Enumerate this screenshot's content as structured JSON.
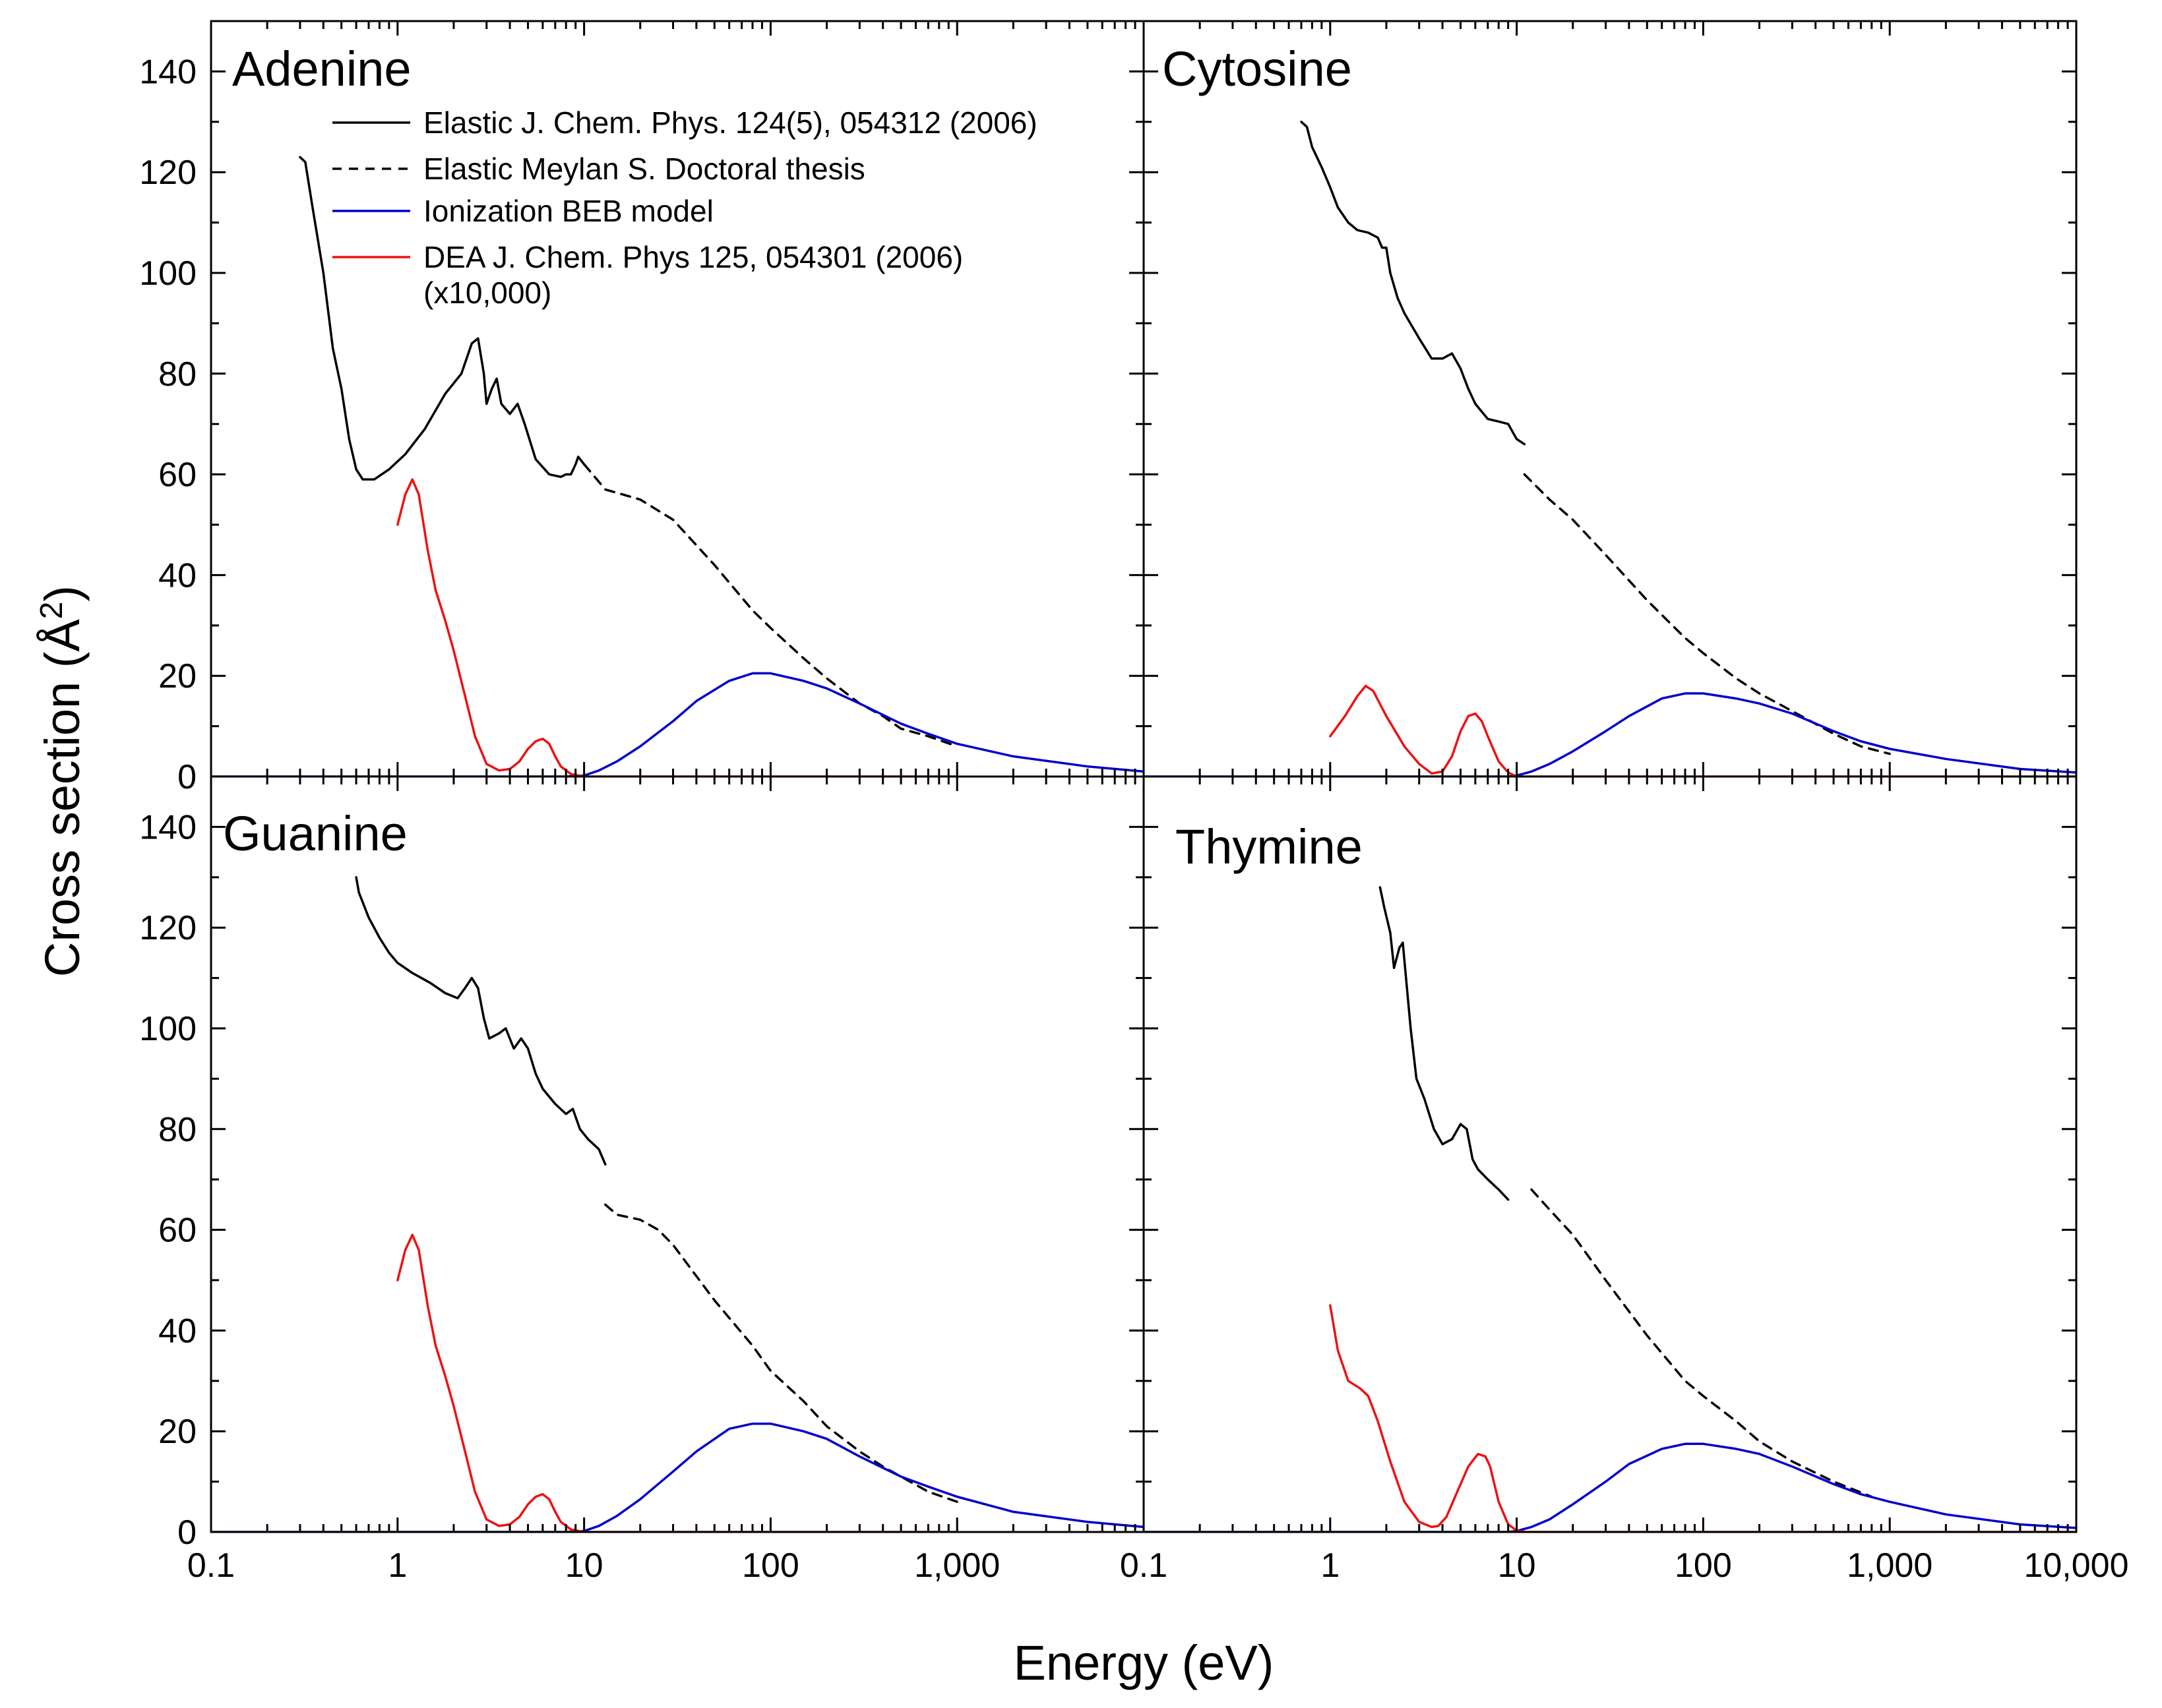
{
  "figure": {
    "xlabel": "Energy (eV)",
    "ylabel_main": "Cross section (Å",
    "ylabel_sup": "2",
    "ylabel_end": ")"
  },
  "legend": [
    {
      "label": "Elastic J. Chem. Phys. 124(5), 054312 (2006)",
      "color": "#000000",
      "dash": false
    },
    {
      "label": "Elastic Meylan S. Doctoral thesis",
      "color": "#000000",
      "dash": true
    },
    {
      "label": "Ionization BEB model",
      "color": "#0000cc",
      "dash": false
    },
    {
      "label": "DEA J. Chem. Phys 125, 054301 (2006)",
      "label2": "(x10,000)",
      "color": "#ee1111",
      "dash": false
    }
  ],
  "colors": {
    "elastic": "#000000",
    "ionization": "#0000cc",
    "dea": "#ee1111"
  },
  "chart_data": [
    {
      "type": "line",
      "title": "Adenine",
      "xscale": "log",
      "xlim": [
        0.1,
        10000
      ],
      "ylim": [
        0,
        150
      ],
      "xticks": [
        "0.1",
        "1",
        "10",
        "100",
        "1,000"
      ],
      "yticks": [
        "0",
        "20",
        "40",
        "60",
        "80",
        "100",
        "120",
        "140"
      ],
      "series": [
        {
          "name": "Elastic J. Chem. Phys. 124(5), 054312 (2006)",
          "style": "solid",
          "color": "elastic",
          "x": [
            0.3,
            0.32,
            0.35,
            0.4,
            0.45,
            0.5,
            0.55,
            0.6,
            0.65,
            0.75,
            0.9,
            1.1,
            1.4,
            1.8,
            2.2,
            2.5,
            2.7,
            2.9,
            3.0,
            3.2,
            3.4,
            3.6,
            4.0,
            4.4,
            4.8,
            5.5,
            6.5,
            7.5,
            8.0,
            8.5,
            9.0,
            9.3,
            10.0
          ],
          "y": [
            123,
            122,
            113,
            100,
            85,
            77,
            67,
            61,
            59,
            59,
            61,
            64,
            69,
            76,
            80,
            86,
            87,
            80,
            74,
            77,
            79,
            74,
            72,
            74,
            70,
            63,
            60,
            59.5,
            60,
            60,
            62,
            63.5,
            62
          ]
        },
        {
          "name": "Elastic Meylan S. Doctoral thesis",
          "style": "dash",
          "color": "elastic",
          "x": [
            10,
            13,
            20,
            30,
            50,
            80,
            100,
            150,
            200,
            300,
            400,
            500,
            700,
            1000
          ],
          "y": [
            62,
            57,
            55,
            51,
            42,
            33,
            29.5,
            23.5,
            19.5,
            14.5,
            12,
            9.5,
            8,
            6
          ]
        },
        {
          "name": "Ionization BEB model",
          "style": "solid",
          "color": "ionization",
          "x": [
            0.1,
            1,
            8,
            10,
            12,
            15,
            20,
            30,
            40,
            60,
            80,
            100,
            150,
            200,
            300,
            500,
            700,
            1000,
            2000,
            5000,
            10000
          ],
          "y": [
            0,
            0,
            0,
            0.2,
            1.2,
            3,
            6,
            11,
            15,
            19,
            20.5,
            20.5,
            19,
            17.5,
            14.5,
            10.5,
            8.5,
            6.5,
            4,
            2,
            1
          ]
        },
        {
          "name": "DEA J. Chem. Phys 125, 054301 (2006) (x10,000)",
          "style": "solid",
          "color": "dea",
          "x": [
            1.0,
            1.1,
            1.2,
            1.3,
            1.45,
            1.6,
            1.8,
            2.0,
            2.3,
            2.6,
            3.0,
            3.5,
            4.0,
            4.5,
            5.0,
            5.5,
            6.0,
            6.5,
            7.0,
            7.5,
            8.5,
            10,
            1000
          ],
          "y": [
            50,
            56,
            59,
            56,
            45,
            37,
            31,
            25,
            16,
            8,
            2.5,
            1.2,
            1.5,
            3,
            5.5,
            7,
            7.5,
            6.5,
            4,
            2,
            0.5,
            0,
            0
          ]
        }
      ]
    },
    {
      "type": "line",
      "title": "Cytosine",
      "xscale": "log",
      "xlim": [
        0.1,
        10000
      ],
      "ylim": [
        0,
        150
      ],
      "xticks": [
        "0.1",
        "1",
        "10",
        "100",
        "1,000",
        "10,000"
      ],
      "yticks": [
        "0",
        "20",
        "40",
        "60",
        "80",
        "100",
        "120",
        "140"
      ],
      "series": [
        {
          "name": "Elastic J. Chem. Phys. 124(5), 054312 (2006)",
          "style": "solid",
          "color": "elastic",
          "x": [
            0.7,
            0.75,
            0.8,
            0.9,
            1.0,
            1.1,
            1.25,
            1.4,
            1.6,
            1.8,
            1.9,
            2.0,
            2.1,
            2.3,
            2.5,
            3.0,
            3.5,
            4.0,
            4.5,
            5.0,
            5.5,
            6.0,
            7.0,
            8.0,
            9.0,
            10.0,
            11.0
          ],
          "y": [
            130,
            129,
            125,
            121,
            117,
            113,
            110,
            108.5,
            108,
            107,
            105,
            105,
            100,
            95,
            92,
            87,
            83,
            83,
            84,
            81,
            77,
            74,
            71,
            70.5,
            70,
            67,
            66
          ]
        },
        {
          "name": "Elastic Meylan S. Doctoral thesis",
          "style": "dash",
          "color": "elastic",
          "x": [
            11,
            15,
            20,
            30,
            50,
            80,
            100,
            150,
            200,
            300,
            500,
            700,
            1000
          ],
          "y": [
            60,
            55,
            51,
            44,
            35,
            27.5,
            24.5,
            19.5,
            16.5,
            13,
            8.5,
            6,
            4.5
          ]
        },
        {
          "name": "Ionization BEB model",
          "style": "solid",
          "color": "ionization",
          "x": [
            0.1,
            1,
            9,
            10,
            12,
            15,
            20,
            30,
            40,
            60,
            80,
            100,
            150,
            200,
            300,
            500,
            700,
            1000,
            2000,
            5000,
            10000
          ],
          "y": [
            0,
            0,
            0,
            0.2,
            1,
            2.5,
            5,
            9,
            12,
            15.5,
            16.5,
            16.5,
            15.5,
            14.5,
            12.5,
            9,
            7,
            5.5,
            3.5,
            1.5,
            0.8
          ]
        },
        {
          "name": "DEA J. Chem. Phys 125, 054301 (2006) (x10,000)",
          "style": "solid",
          "color": "dea",
          "x": [
            1.0,
            1.2,
            1.4,
            1.55,
            1.7,
            2.0,
            2.5,
            3.0,
            3.5,
            4.0,
            4.5,
            5.0,
            5.5,
            6.0,
            6.5,
            7.0,
            8.0,
            9.0,
            10,
            10000
          ],
          "y": [
            8,
            12,
            16,
            18,
            17,
            12,
            6,
            2.5,
            0.6,
            1,
            4,
            9,
            12,
            12.5,
            11,
            8,
            3,
            0.8,
            0,
            0
          ]
        }
      ]
    },
    {
      "type": "line",
      "title": "Guanine",
      "xscale": "log",
      "xlim": [
        0.1,
        10000
      ],
      "ylim": [
        0,
        150
      ],
      "xticks": [
        "0.1",
        "1",
        "10",
        "100",
        "1,000"
      ],
      "yticks": [
        "0",
        "20",
        "40",
        "60",
        "80",
        "100",
        "120",
        "140"
      ],
      "series": [
        {
          "name": "Elastic J. Chem. Phys. 124(5), 054312 (2006)",
          "style": "solid",
          "color": "elastic",
          "x": [
            0.6,
            0.62,
            0.7,
            0.8,
            0.9,
            1.0,
            1.2,
            1.5,
            1.8,
            2.1,
            2.3,
            2.5,
            2.7,
            2.9,
            3.1,
            3.5,
            3.8,
            4.2,
            4.6,
            5.0,
            5.5,
            6.0,
            7.0,
            8.0,
            8.7,
            9.5,
            10.5,
            12.0,
            13.0
          ],
          "y": [
            130,
            127,
            122,
            118,
            115,
            113,
            111,
            109,
            107,
            106,
            108,
            110,
            108,
            102,
            98,
            99,
            100,
            96,
            98,
            96,
            91,
            88,
            85,
            83,
            84,
            80,
            78,
            76,
            73
          ]
        },
        {
          "name": "Elastic Meylan S. Doctoral thesis",
          "style": "dash",
          "color": "elastic",
          "x": [
            13,
            15,
            20,
            25,
            30,
            50,
            80,
            100,
            150,
            200,
            300,
            400,
            500,
            700,
            1000
          ],
          "y": [
            65,
            63,
            62,
            60,
            57,
            46,
            37,
            32,
            26,
            21,
            16,
            13,
            11,
            8,
            6
          ]
        },
        {
          "name": "Ionization BEB model",
          "style": "solid",
          "color": "ionization",
          "x": [
            0.1,
            1,
            8,
            10,
            12,
            15,
            20,
            30,
            40,
            60,
            80,
            100,
            150,
            200,
            300,
            500,
            700,
            1000,
            2000,
            5000,
            10000
          ],
          "y": [
            0,
            0,
            0,
            0.2,
            1.2,
            3.2,
            6.5,
            12,
            16,
            20.5,
            21.5,
            21.5,
            20,
            18.5,
            15,
            11,
            9,
            7,
            4,
            2,
            1
          ]
        },
        {
          "name": "DEA J. Chem. Phys 125, 054301 (2006) (x10,000)",
          "style": "solid",
          "color": "dea",
          "x": [
            1.0,
            1.1,
            1.2,
            1.3,
            1.45,
            1.6,
            1.8,
            2.0,
            2.3,
            2.6,
            3.0,
            3.5,
            4.0,
            4.5,
            5.0,
            5.5,
            6.0,
            6.5,
            7.0,
            7.5,
            8.5,
            10,
            1000
          ],
          "y": [
            50,
            56,
            59,
            56,
            45,
            37,
            31,
            25,
            16,
            8,
            2.5,
            1.2,
            1.5,
            3,
            5.5,
            7,
            7.5,
            6.5,
            4,
            2,
            0.5,
            0,
            0
          ]
        }
      ]
    },
    {
      "type": "line",
      "title": "Thymine",
      "xscale": "log",
      "xlim": [
        0.1,
        10000
      ],
      "ylim": [
        0,
        150
      ],
      "xticks": [
        "0.1",
        "1",
        "10",
        "100",
        "1,000",
        "10,000"
      ],
      "yticks": [
        "0",
        "20",
        "40",
        "60",
        "80",
        "100",
        "120",
        "140"
      ],
      "series": [
        {
          "name": "Elastic J. Chem. Phys. 124(5), 054312 (2006)",
          "style": "solid",
          "color": "elastic",
          "x": [
            1.85,
            1.95,
            2.1,
            2.2,
            2.35,
            2.45,
            2.55,
            2.7,
            2.9,
            3.2,
            3.6,
            4.0,
            4.5,
            5.0,
            5.4,
            5.8,
            6.2,
            7.0,
            8.0,
            9.0
          ],
          "y": [
            128,
            124,
            119,
            112,
            116,
            117,
            110,
            100,
            90,
            86,
            80,
            77,
            78,
            81,
            80,
            74,
            72,
            70,
            68,
            66
          ]
        },
        {
          "name": "Elastic Meylan S. Doctoral thesis",
          "style": "dash",
          "color": "elastic",
          "x": [
            12,
            15,
            20,
            30,
            50,
            80,
            100,
            150,
            200,
            300,
            500,
            800
          ],
          "y": [
            68,
            64,
            59,
            50,
            39,
            30,
            27,
            22,
            18,
            14,
            10,
            7
          ]
        },
        {
          "name": "Ionization BEB model",
          "style": "solid",
          "color": "ionization",
          "x": [
            0.1,
            1,
            9,
            10,
            12,
            15,
            20,
            30,
            40,
            60,
            80,
            100,
            150,
            200,
            300,
            500,
            700,
            1000,
            2000,
            5000,
            10000
          ],
          "y": [
            0,
            0,
            0,
            0.2,
            1,
            2.5,
            5.5,
            10,
            13.5,
            16.5,
            17.5,
            17.5,
            16.5,
            15.5,
            13,
            9.5,
            7.5,
            6,
            3.5,
            1.5,
            0.8
          ]
        },
        {
          "name": "DEA J. Chem. Phys 125, 054301 (2006) (x10,000)",
          "style": "solid",
          "color": "dea",
          "x": [
            1.0,
            1.1,
            1.25,
            1.45,
            1.6,
            1.8,
            2.1,
            2.5,
            3.0,
            3.5,
            3.8,
            4.2,
            4.8,
            5.5,
            6.2,
            6.8,
            7.2,
            8.0,
            9.0,
            10,
            11,
            10000
          ],
          "y": [
            45,
            36,
            30,
            28.5,
            27,
            22,
            14,
            6,
            2,
            1,
            1.2,
            3,
            8,
            13,
            15.5,
            15,
            13,
            6,
            1.5,
            0.3,
            0,
            0
          ]
        }
      ]
    }
  ]
}
